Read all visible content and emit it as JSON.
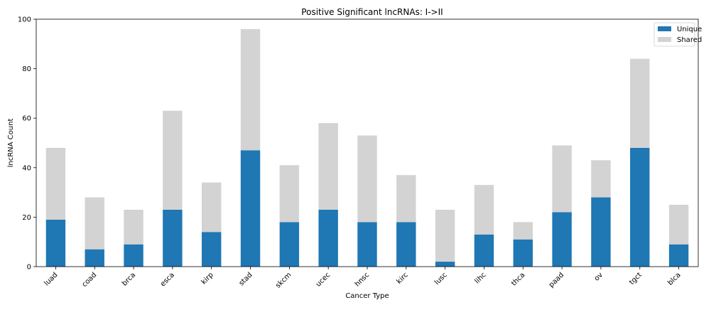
{
  "chart_data": {
    "type": "bar",
    "stacked": true,
    "title": "Positive Significant lncRNAs: I->II",
    "xlabel": "Cancer Type",
    "ylabel": "lncRNA Count",
    "ylim": [
      0,
      100
    ],
    "yticks": [
      "0",
      "20",
      "40",
      "60",
      "80",
      "100"
    ],
    "categories": [
      "luad",
      "coad",
      "brca",
      "esca",
      "kirp",
      "stad",
      "skcm",
      "ucec",
      "hnsc",
      "kirc",
      "lusc",
      "lihc",
      "thca",
      "paad",
      "ov",
      "tgct",
      "blca"
    ],
    "series": [
      {
        "name": "Unique",
        "color": "#1f77b4",
        "values": [
          19,
          7,
          9,
          23,
          14,
          47,
          18,
          23,
          18,
          18,
          2,
          13,
          11,
          22,
          28,
          48,
          9
        ]
      },
      {
        "name": "Shared",
        "color": "#d3d3d3",
        "values": [
          29,
          21,
          14,
          40,
          20,
          49,
          23,
          35,
          35,
          19,
          21,
          20,
          7,
          27,
          15,
          36,
          16
        ]
      }
    ],
    "legend": "top-right",
    "grid": false
  }
}
